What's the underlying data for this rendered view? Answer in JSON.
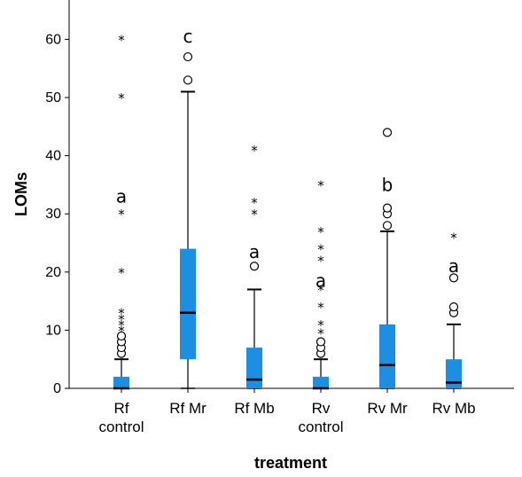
{
  "chart_data": {
    "type": "boxplot",
    "xlabel": "treatment",
    "ylabel": "LOMs",
    "ylim": [
      0,
      66
    ],
    "yticks": [
      0,
      10,
      20,
      30,
      40,
      50,
      60
    ],
    "box_color": "#1c8fe3",
    "groups": [
      {
        "label_lines": [
          "Rf",
          "control"
        ],
        "min": 0,
        "q1": 0,
        "median": 0,
        "q3": 2,
        "max": 5,
        "outliers": [
          6,
          7,
          8,
          9
        ],
        "extremes": [
          10,
          11,
          12,
          13,
          20,
          30,
          50,
          60
        ],
        "letter": "a",
        "letter_y": 33
      },
      {
        "label_lines": [
          "Rf Mr"
        ],
        "min": 0,
        "q1": 5,
        "median": 13,
        "q3": 24,
        "max": 51,
        "outliers": [
          53,
          57
        ],
        "extremes": [],
        "letter": "c",
        "letter_y": 60.5
      },
      {
        "label_lines": [
          "Rf Mb"
        ],
        "min": 0,
        "q1": 0,
        "median": 1.5,
        "q3": 7,
        "max": 17,
        "outliers": [
          21
        ],
        "extremes": [
          30,
          32,
          41
        ],
        "letter": "a",
        "letter_y": 23.5
      },
      {
        "label_lines": [
          "Rv",
          "control"
        ],
        "min": 0,
        "q1": 0,
        "median": 0,
        "q3": 2,
        "max": 5,
        "outliers": [
          6,
          7,
          8
        ],
        "extremes": [
          9.5,
          11,
          14,
          17,
          22,
          24,
          27,
          35
        ],
        "letter": "a",
        "letter_y": 18.5
      },
      {
        "label_lines": [
          "Rv Mr"
        ],
        "min": 0,
        "q1": 0,
        "median": 4,
        "q3": 11,
        "max": 27,
        "outliers": [
          28,
          30,
          31,
          44
        ],
        "extremes": [],
        "letter": "b",
        "letter_y": 35
      },
      {
        "label_lines": [
          "Rv Mb"
        ],
        "min": 0,
        "q1": 0,
        "median": 1,
        "q3": 5,
        "max": 11,
        "outliers": [
          13,
          14,
          19
        ],
        "extremes": [
          26
        ],
        "letter": "a",
        "letter_y": 21
      }
    ]
  }
}
